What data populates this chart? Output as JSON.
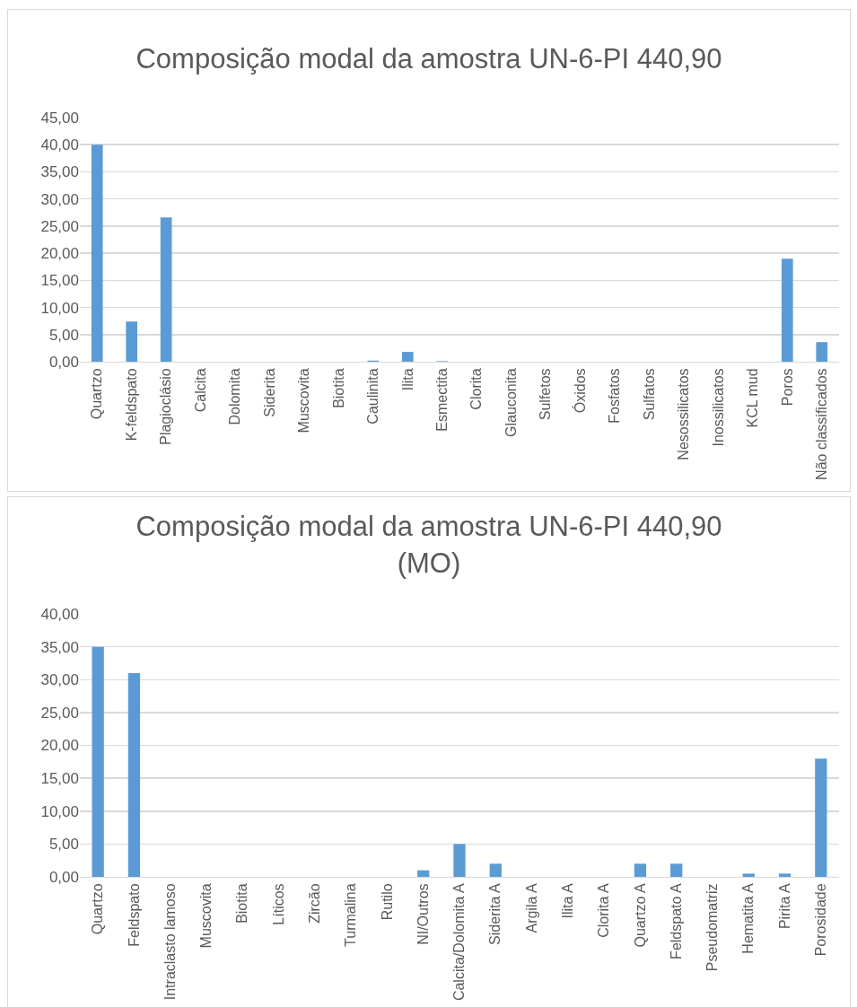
{
  "chart_data": [
    {
      "type": "bar",
      "title": "Composição modal da amostra UN-6-PI 440,90",
      "categories": [
        "Quartzo",
        "K-feldspato",
        "Plagioclásio",
        "Calcita",
        "Dolomita",
        "Siderita",
        "Muscovita",
        "Biotita",
        "Caulinita",
        "Ilita",
        "Esmectita",
        "Clorita",
        "Glauconita",
        "Sulfetos",
        "Óxidos",
        "Fosfatos",
        "Sulfatos",
        "Nesossilicatos",
        "Inossilicatos",
        "KCL mud",
        "Poros",
        "Não classificados"
      ],
      "values": [
        40,
        7.4,
        26.6,
        0,
        0,
        0,
        0,
        0,
        0.2,
        1.8,
        0.1,
        0,
        0,
        0,
        0,
        0,
        0,
        0,
        0,
        0,
        19,
        3.6
      ],
      "color": "#5b9bd5",
      "ylim": [
        0,
        45
      ],
      "yticks": [
        {
          "value": 0,
          "label": "0,00"
        },
        {
          "value": 5,
          "label": "5,00"
        },
        {
          "value": 10,
          "label": "10,00"
        },
        {
          "value": 15,
          "label": "15,00"
        },
        {
          "value": 20,
          "label": "20,00"
        },
        {
          "value": 25,
          "label": "25,00"
        },
        {
          "value": 30,
          "label": "30,00"
        },
        {
          "value": 35,
          "label": "35,00"
        },
        {
          "value": 40,
          "label": "40,00"
        },
        {
          "value": 45,
          "label": "45,00"
        }
      ],
      "grid": "y"
    },
    {
      "type": "bar",
      "title": "Composição modal da amostra UN-6-PI 440,90\n(MO)",
      "categories": [
        "Quartzo",
        "Feldspato",
        "Intraclasto lamoso",
        "Muscovita",
        "Biotita",
        "Líticos",
        "Zircão",
        "Turmalina",
        "Rutilo",
        "NI/Outros",
        "Calcita/Dolomita A",
        "Siderita A",
        "Argila A",
        "Ilita A",
        "Clorita A",
        "Quartzo A",
        "Feldspato A",
        "Pseudomatriz",
        "Hematita A",
        "Pirita A",
        "Porosidade"
      ],
      "values": [
        35,
        31,
        0,
        0,
        0,
        0,
        0,
        0,
        0,
        1,
        5,
        2,
        0,
        0,
        0,
        2,
        2,
        0,
        0.5,
        0.5,
        18
      ],
      "color": "#5b9bd5",
      "ylim": [
        0,
        40
      ],
      "yticks": [
        {
          "value": 0,
          "label": "0,00"
        },
        {
          "value": 5,
          "label": "5,00"
        },
        {
          "value": 10,
          "label": "10,00"
        },
        {
          "value": 15,
          "label": "15,00"
        },
        {
          "value": 20,
          "label": "20,00"
        },
        {
          "value": 25,
          "label": "25,00"
        },
        {
          "value": 30,
          "label": "30,00"
        },
        {
          "value": 35,
          "label": "35,00"
        },
        {
          "value": 40,
          "label": "40,00"
        }
      ],
      "grid": "y"
    }
  ]
}
